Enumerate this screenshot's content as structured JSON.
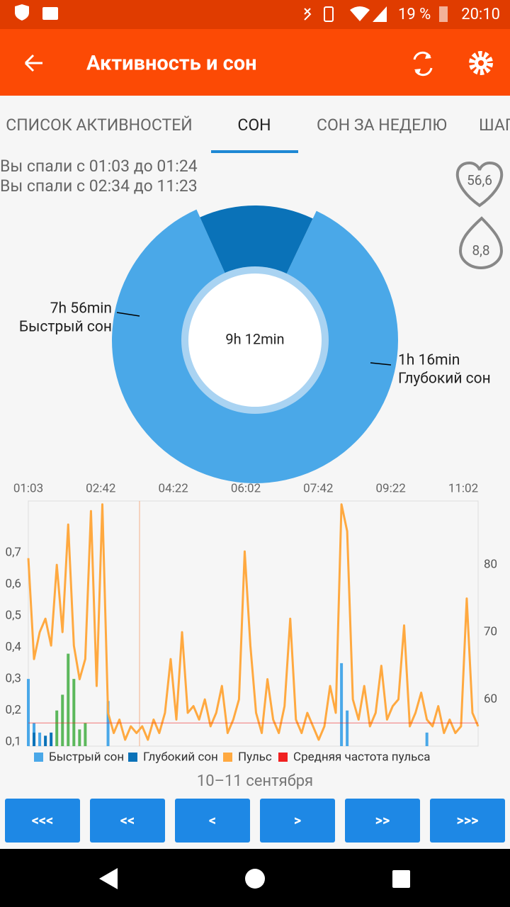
{
  "status_bar": {
    "battery": "19 %",
    "time": "20:10"
  },
  "app_bar": {
    "title": "Активность и сон"
  },
  "tabs": [
    "СПИСОК АКТИВНОСТЕЙ",
    "СОН",
    "СОН ЗА НЕДЕЛЮ",
    "ШАГ"
  ],
  "sleep_periods": [
    "Вы спали с 01:03 до 01:24",
    "Вы спали с 02:34 до 11:23"
  ],
  "badges": {
    "heart": "56,6",
    "drop": "8,8"
  },
  "chart_data": [
    {
      "type": "pie",
      "categories": [
        "Быстрый сон",
        "Глубокий сон"
      ],
      "values": [
        476,
        76
      ],
      "value_labels": [
        "7h 56min",
        "1h 16min"
      ],
      "colors": [
        "#4aa8e8",
        "#0a72b8"
      ],
      "center_label": "9h 12min"
    },
    {
      "type": "line",
      "xtick_labels": [
        "01:03",
        "02:42",
        "04:22",
        "06:02",
        "07:42",
        "09:22",
        "11:02"
      ],
      "ylim": [
        0.087,
        0.864
      ],
      "yticks": [
        {
          "value": 0.1,
          "label": "0,1"
        },
        {
          "value": 0.2,
          "label": "0,2"
        },
        {
          "value": 0.3,
          "label": "0,3"
        },
        {
          "value": 0.4,
          "label": "0,4"
        },
        {
          "value": 0.5,
          "label": "0,5"
        },
        {
          "value": 0.6,
          "label": "0,6"
        },
        {
          "value": 0.7,
          "label": "0,7"
        }
      ],
      "y2lim": [
        53.05,
        89.5
      ],
      "y2ticks": [
        60,
        70,
        80
      ],
      "series": [
        {
          "name": "Быстрый сон",
          "color": "#4aa8e8",
          "kind": "bar",
          "values": [
            0.3,
            0.16,
            0.13,
            null,
            null,
            null,
            null,
            null,
            null,
            null,
            null,
            null,
            null,
            null,
            0.23,
            null,
            null,
            null,
            null,
            null,
            null,
            null,
            null,
            null,
            null,
            null,
            null,
            null,
            null,
            null,
            null,
            null,
            null,
            null,
            null,
            null,
            null,
            null,
            null,
            null,
            null,
            null,
            null,
            null,
            null,
            null,
            null,
            null,
            null,
            null,
            null,
            null,
            null,
            null,
            null,
            0.35,
            0.2,
            null,
            null,
            null,
            null,
            null,
            null,
            null,
            null,
            null,
            null,
            null,
            null,
            null,
            0.13,
            null,
            null,
            null,
            null,
            null,
            null,
            null,
            null,
            null
          ]
        },
        {
          "name": "Глубокий сон",
          "color": "#0a72b8",
          "kind": "bar",
          "values": [
            null,
            0.13,
            null,
            0.12,
            0.13,
            null,
            null,
            null,
            null,
            null,
            null,
            null,
            null,
            null,
            null,
            null,
            null,
            null,
            null,
            null,
            null,
            null,
            null,
            null,
            null,
            null,
            null,
            null,
            null,
            null,
            null,
            null,
            null,
            null,
            null,
            null,
            null,
            null,
            null,
            null,
            null,
            null,
            null,
            null,
            null,
            null,
            null,
            null,
            null,
            null,
            null,
            null,
            null,
            null,
            null,
            null,
            null,
            null,
            null,
            null,
            null,
            null,
            null,
            null,
            null,
            null,
            null,
            null,
            null,
            null,
            null,
            null,
            null,
            null,
            null,
            null,
            null,
            null,
            null,
            null
          ]
        },
        {
          "color": "#5cb85c",
          "kind": "bar",
          "values": [
            null,
            null,
            null,
            null,
            null,
            0.2,
            0.25,
            0.38,
            0.3,
            0.14,
            0.16,
            null,
            null,
            null,
            null,
            null,
            null,
            null,
            null,
            null,
            null,
            null,
            null,
            null,
            null,
            null,
            null,
            null,
            null,
            null,
            null,
            null,
            null,
            null,
            null,
            null,
            null,
            null,
            null,
            null,
            null,
            null,
            null,
            null,
            null,
            null,
            null,
            null,
            null,
            null,
            null,
            null,
            null,
            null,
            null,
            null,
            null,
            null,
            null,
            null,
            null,
            null,
            null,
            null,
            null,
            null,
            null,
            null,
            null,
            null,
            null,
            null,
            null,
            null,
            null,
            null,
            null,
            null,
            null,
            null
          ]
        },
        {
          "name": "Пульс",
          "color": "#ffa940",
          "kind": "line",
          "axis": "y2",
          "values": [
            81,
            66,
            70,
            72,
            68,
            80,
            70,
            86,
            68,
            63,
            66,
            88,
            62,
            89,
            58,
            55,
            57,
            54,
            56,
            55,
            56,
            54,
            57,
            55,
            58,
            66,
            57,
            70,
            58,
            59,
            57,
            60,
            56,
            58,
            62,
            55,
            57,
            60,
            82,
            68,
            58,
            55,
            63,
            57,
            55,
            59,
            72,
            57,
            55,
            58,
            56,
            54,
            56,
            62,
            58,
            89,
            85,
            60,
            57,
            62,
            56,
            58,
            65,
            57,
            59,
            60,
            71,
            56,
            58,
            61,
            57,
            56,
            59,
            55,
            57,
            55,
            56,
            75,
            58,
            56
          ]
        }
      ],
      "average_line": {
        "name": "Средняя частота пульса",
        "color": "#f02020",
        "axis": "y2",
        "value": 56.5
      }
    }
  ],
  "date_label": "10–11 сентября",
  "nav_buttons": [
    "<<<",
    "<<",
    "<",
    ">",
    ">>",
    ">>>"
  ]
}
